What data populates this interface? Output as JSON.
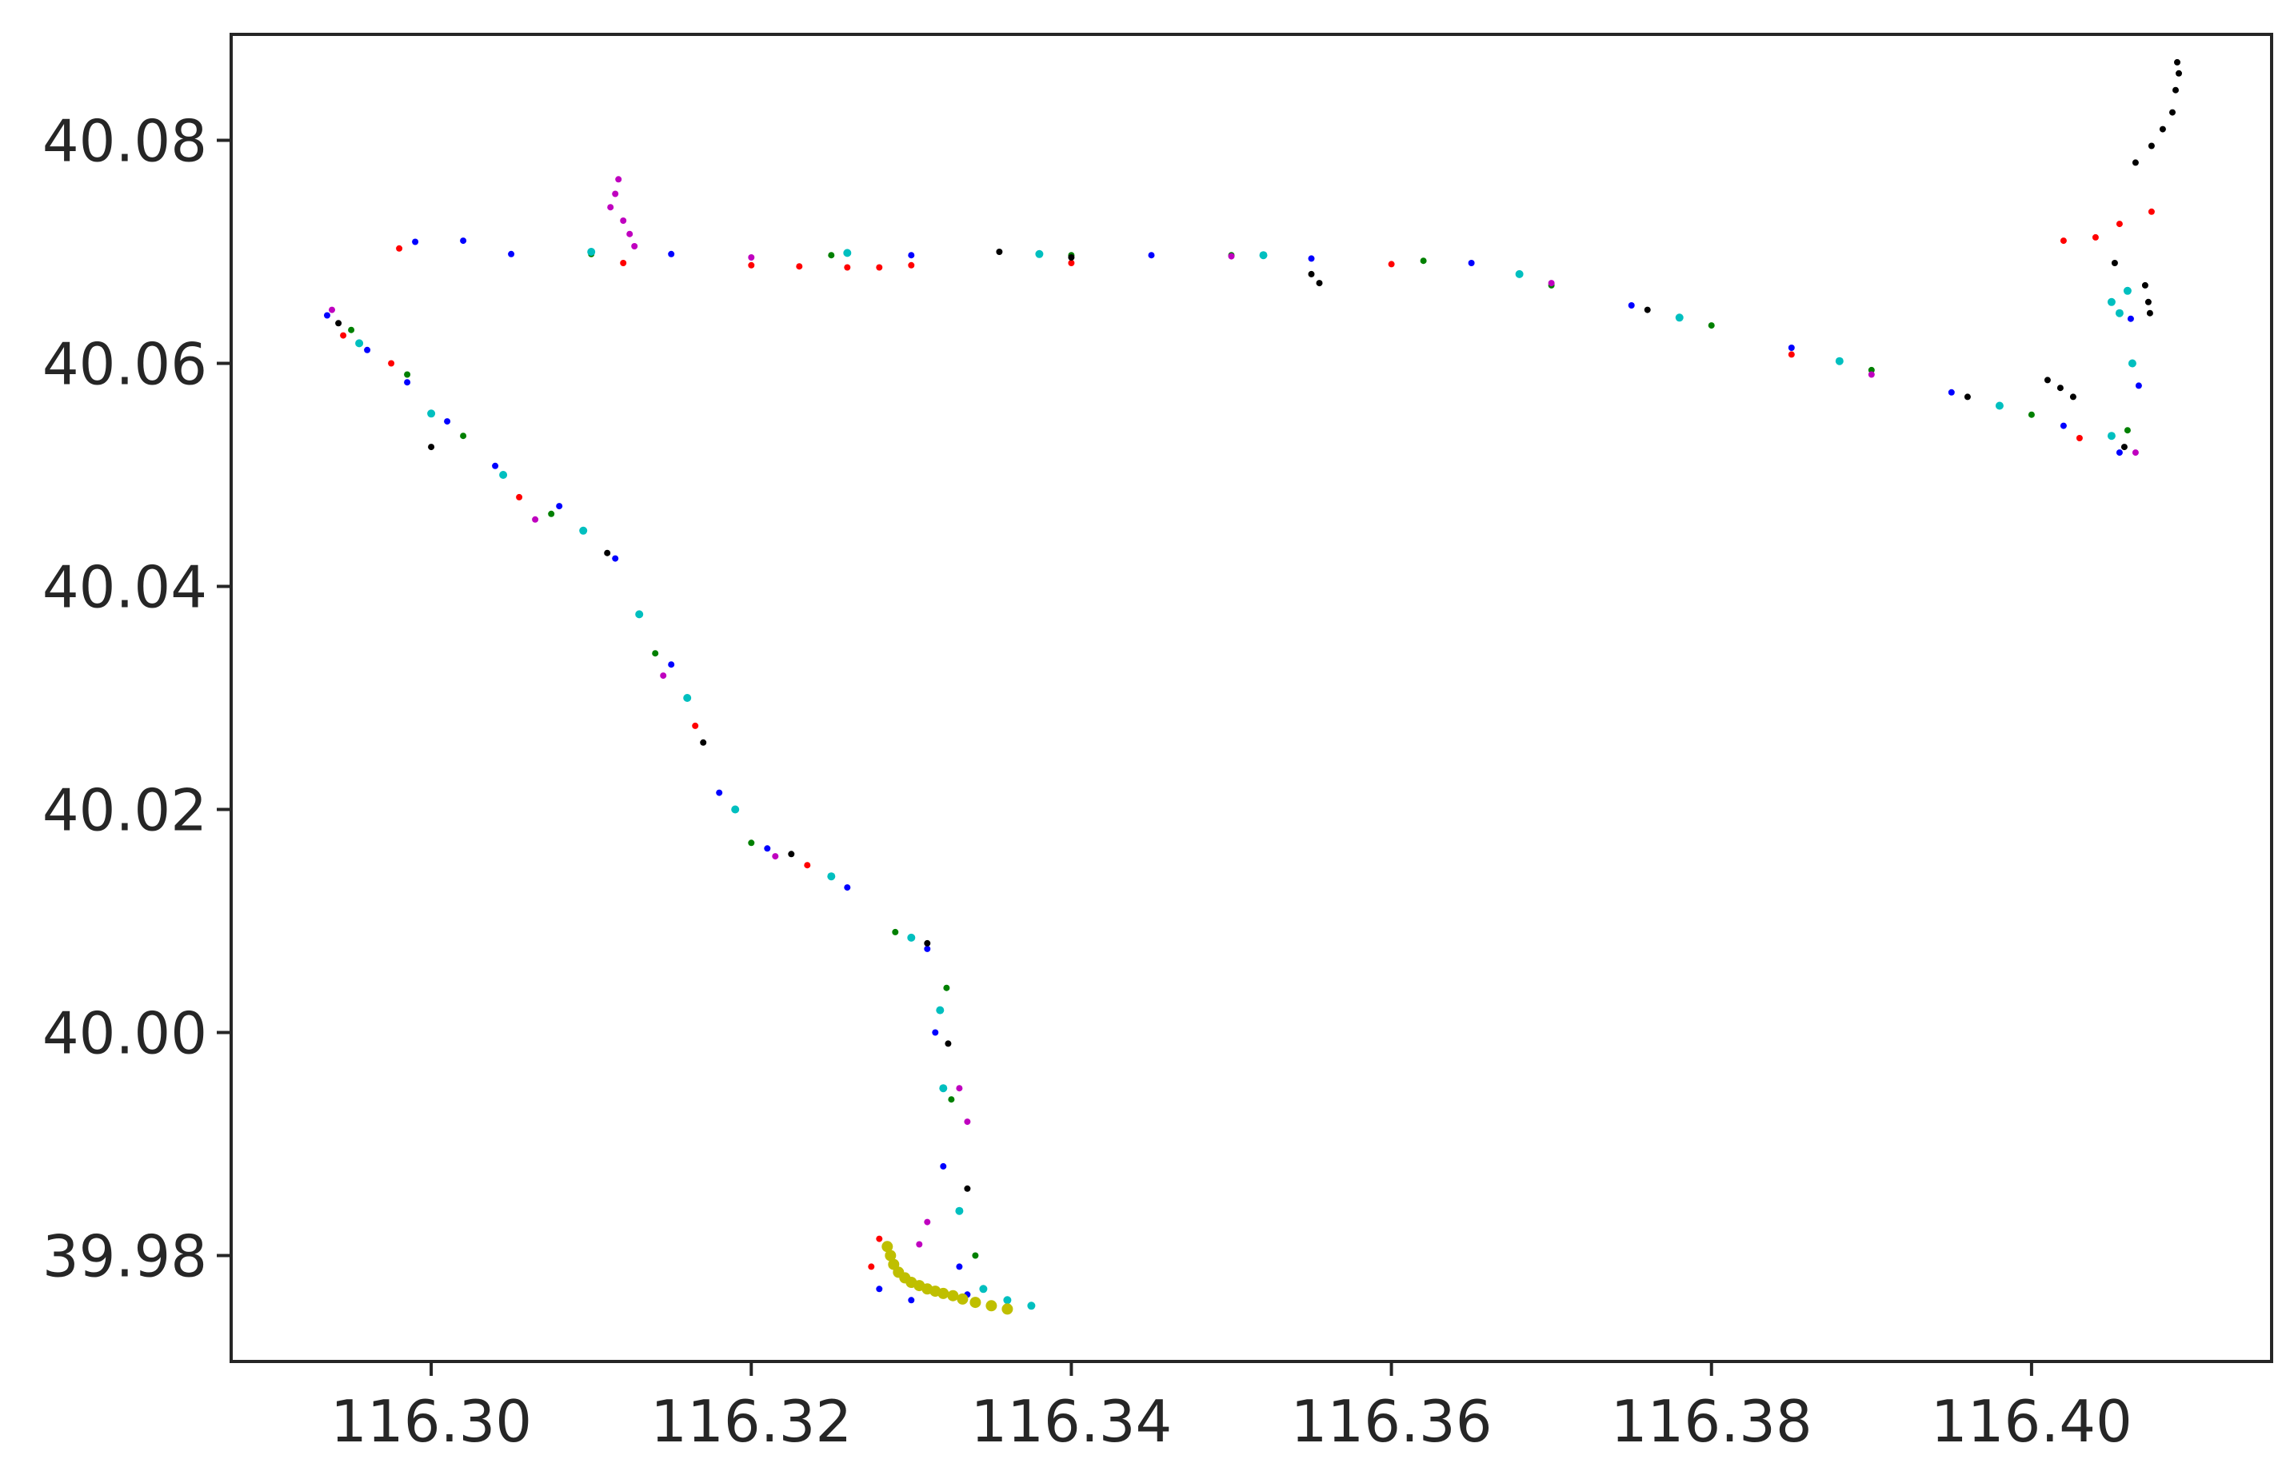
{
  "chart_data": {
    "type": "scatter",
    "title": "",
    "xlabel": "",
    "ylabel": "",
    "xlim": [
      116.2875,
      116.415
    ],
    "ylim": [
      39.9705,
      40.0895
    ],
    "grid": false,
    "legend": "none",
    "x_ticks": [
      {
        "value": 116.3,
        "label": "116.30"
      },
      {
        "value": 116.32,
        "label": "116.32"
      },
      {
        "value": 116.34,
        "label": "116.34"
      },
      {
        "value": 116.36,
        "label": "116.36"
      },
      {
        "value": 116.38,
        "label": "116.38"
      },
      {
        "value": 116.4,
        "label": "116.40"
      }
    ],
    "y_ticks": [
      {
        "value": 39.98,
        "label": "39.98"
      },
      {
        "value": 40.0,
        "label": "40.00"
      },
      {
        "value": 40.02,
        "label": "40.02"
      },
      {
        "value": 40.04,
        "label": "40.04"
      },
      {
        "value": 40.06,
        "label": "40.06"
      },
      {
        "value": 40.08,
        "label": "40.08"
      }
    ],
    "series": [
      {
        "color": "#0000ff",
        "marker_size": 4,
        "points": [
          [
            116.2935,
            40.0643
          ],
          [
            116.296,
            40.0612
          ],
          [
            116.2985,
            40.0583
          ],
          [
            116.301,
            40.0548
          ],
          [
            116.304,
            40.0508
          ],
          [
            116.308,
            40.0472
          ],
          [
            116.3115,
            40.0425
          ],
          [
            116.315,
            40.033
          ],
          [
            116.318,
            40.0215
          ],
          [
            116.321,
            40.0165
          ],
          [
            116.326,
            40.013
          ],
          [
            116.331,
            40.0075
          ],
          [
            116.3315,
            40.0
          ],
          [
            116.332,
            39.988
          ],
          [
            116.333,
            39.979
          ],
          [
            116.3335,
            39.9765
          ],
          [
            116.33,
            39.976
          ],
          [
            116.328,
            39.977
          ],
          [
            116.299,
            40.0709
          ],
          [
            116.302,
            40.071
          ],
          [
            116.305,
            40.0698
          ],
          [
            116.315,
            40.0698
          ],
          [
            116.33,
            40.0697
          ],
          [
            116.345,
            40.0697
          ],
          [
            116.355,
            40.0694
          ],
          [
            116.365,
            40.069
          ],
          [
            116.375,
            40.0652
          ],
          [
            116.385,
            40.0614
          ],
          [
            116.395,
            40.0574
          ],
          [
            116.402,
            40.0544
          ],
          [
            116.4055,
            40.052
          ],
          [
            116.4067,
            40.058
          ],
          [
            116.4062,
            40.064
          ]
        ]
      },
      {
        "color": "#008000",
        "marker_size": 4,
        "points": [
          [
            116.295,
            40.063
          ],
          [
            116.2985,
            40.059
          ],
          [
            116.302,
            40.0535
          ],
          [
            116.3075,
            40.0465
          ],
          [
            116.314,
            40.034
          ],
          [
            116.32,
            40.017
          ],
          [
            116.329,
            40.009
          ],
          [
            116.3322,
            40.004
          ],
          [
            116.3325,
            39.994
          ],
          [
            116.334,
            39.98
          ],
          [
            116.31,
            40.0698
          ],
          [
            116.325,
            40.0697
          ],
          [
            116.34,
            40.0697
          ],
          [
            116.35,
            40.0697
          ],
          [
            116.362,
            40.0692
          ],
          [
            116.37,
            40.067
          ],
          [
            116.38,
            40.0634
          ],
          [
            116.39,
            40.0594
          ],
          [
            116.4,
            40.0554
          ],
          [
            116.406,
            40.054
          ]
        ]
      },
      {
        "color": "#ff0000",
        "marker_size": 4,
        "points": [
          [
            116.2945,
            40.0625
          ],
          [
            116.2975,
            40.06
          ],
          [
            116.3055,
            40.048
          ],
          [
            116.3165,
            40.0275
          ],
          [
            116.3235,
            40.015
          ],
          [
            116.328,
            39.9815
          ],
          [
            116.3275,
            39.979
          ],
          [
            116.298,
            40.0703
          ],
          [
            116.312,
            40.069
          ],
          [
            116.32,
            40.0688
          ],
          [
            116.323,
            40.0687
          ],
          [
            116.326,
            40.0686
          ],
          [
            116.328,
            40.0686
          ],
          [
            116.33,
            40.0688
          ],
          [
            116.34,
            40.069
          ],
          [
            116.36,
            40.0689
          ],
          [
            116.385,
            40.0608
          ],
          [
            116.403,
            40.0533
          ],
          [
            116.402,
            40.071
          ],
          [
            116.404,
            40.0713
          ],
          [
            116.4055,
            40.0725
          ],
          [
            116.4075,
            40.0736
          ]
        ]
      },
      {
        "color": "#00bfbf",
        "marker_size": 5,
        "points": [
          [
            116.2955,
            40.0618
          ],
          [
            116.3,
            40.0555
          ],
          [
            116.3045,
            40.05
          ],
          [
            116.3095,
            40.045
          ],
          [
            116.313,
            40.0375
          ],
          [
            116.316,
            40.03
          ],
          [
            116.319,
            40.02
          ],
          [
            116.325,
            40.014
          ],
          [
            116.33,
            40.0085
          ],
          [
            116.3318,
            40.002
          ],
          [
            116.332,
            39.995
          ],
          [
            116.333,
            39.984
          ],
          [
            116.3345,
            39.977
          ],
          [
            116.336,
            39.976
          ],
          [
            116.3375,
            39.9755
          ],
          [
            116.31,
            40.07
          ],
          [
            116.326,
            40.0699
          ],
          [
            116.338,
            40.0698
          ],
          [
            116.352,
            40.0697
          ],
          [
            116.368,
            40.068
          ],
          [
            116.378,
            40.0641
          ],
          [
            116.388,
            40.0602
          ],
          [
            116.398,
            40.0562
          ],
          [
            116.405,
            40.0535
          ],
          [
            116.4063,
            40.06
          ],
          [
            116.4055,
            40.0645
          ],
          [
            116.405,
            40.0655
          ],
          [
            116.406,
            40.0665
          ]
        ]
      },
      {
        "color": "#bf00bf",
        "marker_size": 4,
        "points": [
          [
            116.2938,
            40.0648
          ],
          [
            116.3065,
            40.046
          ],
          [
            116.3145,
            40.032
          ],
          [
            116.3215,
            40.0158
          ],
          [
            116.333,
            39.995
          ],
          [
            116.3335,
            39.992
          ],
          [
            116.331,
            39.983
          ],
          [
            116.3305,
            39.981
          ],
          [
            116.3117,
            40.0765
          ],
          [
            116.3115,
            40.0752
          ],
          [
            116.3112,
            40.074
          ],
          [
            116.312,
            40.0728
          ],
          [
            116.3124,
            40.0716
          ],
          [
            116.3127,
            40.0705
          ],
          [
            116.32,
            40.0695
          ],
          [
            116.35,
            40.0696
          ],
          [
            116.37,
            40.0672
          ],
          [
            116.39,
            40.059
          ],
          [
            116.4065,
            40.052
          ]
        ]
      },
      {
        "color": "#bfbf00",
        "marker_size": 7,
        "points": [
          [
            116.3285,
            39.9808
          ],
          [
            116.3287,
            39.98
          ],
          [
            116.3289,
            39.9792
          ],
          [
            116.3292,
            39.9785
          ],
          [
            116.3296,
            39.978
          ],
          [
            116.33,
            39.9776
          ],
          [
            116.3305,
            39.9773
          ],
          [
            116.331,
            39.977
          ],
          [
            116.3315,
            39.9768
          ],
          [
            116.332,
            39.9766
          ],
          [
            116.3326,
            39.9764
          ],
          [
            116.3332,
            39.9761
          ],
          [
            116.334,
            39.9758
          ],
          [
            116.335,
            39.9755
          ],
          [
            116.336,
            39.9752
          ]
        ]
      },
      {
        "color": "#000000",
        "marker_size": 4,
        "points": [
          [
            116.2942,
            40.0636
          ],
          [
            116.3,
            40.0525
          ],
          [
            116.311,
            40.043
          ],
          [
            116.317,
            40.026
          ],
          [
            116.3225,
            40.016
          ],
          [
            116.331,
            40.008
          ],
          [
            116.3323,
            39.999
          ],
          [
            116.3335,
            39.986
          ],
          [
            116.3355,
            40.07
          ],
          [
            116.34,
            40.0695
          ],
          [
            116.355,
            40.068
          ],
          [
            116.3555,
            40.0672
          ],
          [
            116.376,
            40.0648
          ],
          [
            116.396,
            40.057
          ],
          [
            116.4058,
            40.0525
          ],
          [
            116.401,
            40.0585
          ],
          [
            116.4018,
            40.0578
          ],
          [
            116.4026,
            40.057
          ],
          [
            116.4052,
            40.069
          ],
          [
            116.4071,
            40.067
          ],
          [
            116.4073,
            40.0655
          ],
          [
            116.4074,
            40.0645
          ],
          [
            116.4065,
            40.078
          ],
          [
            116.4075,
            40.0795
          ],
          [
            116.4082,
            40.081
          ],
          [
            116.4088,
            40.0825
          ],
          [
            116.409,
            40.0845
          ],
          [
            116.4092,
            40.086
          ],
          [
            116.4091,
            40.087
          ]
        ]
      }
    ]
  }
}
